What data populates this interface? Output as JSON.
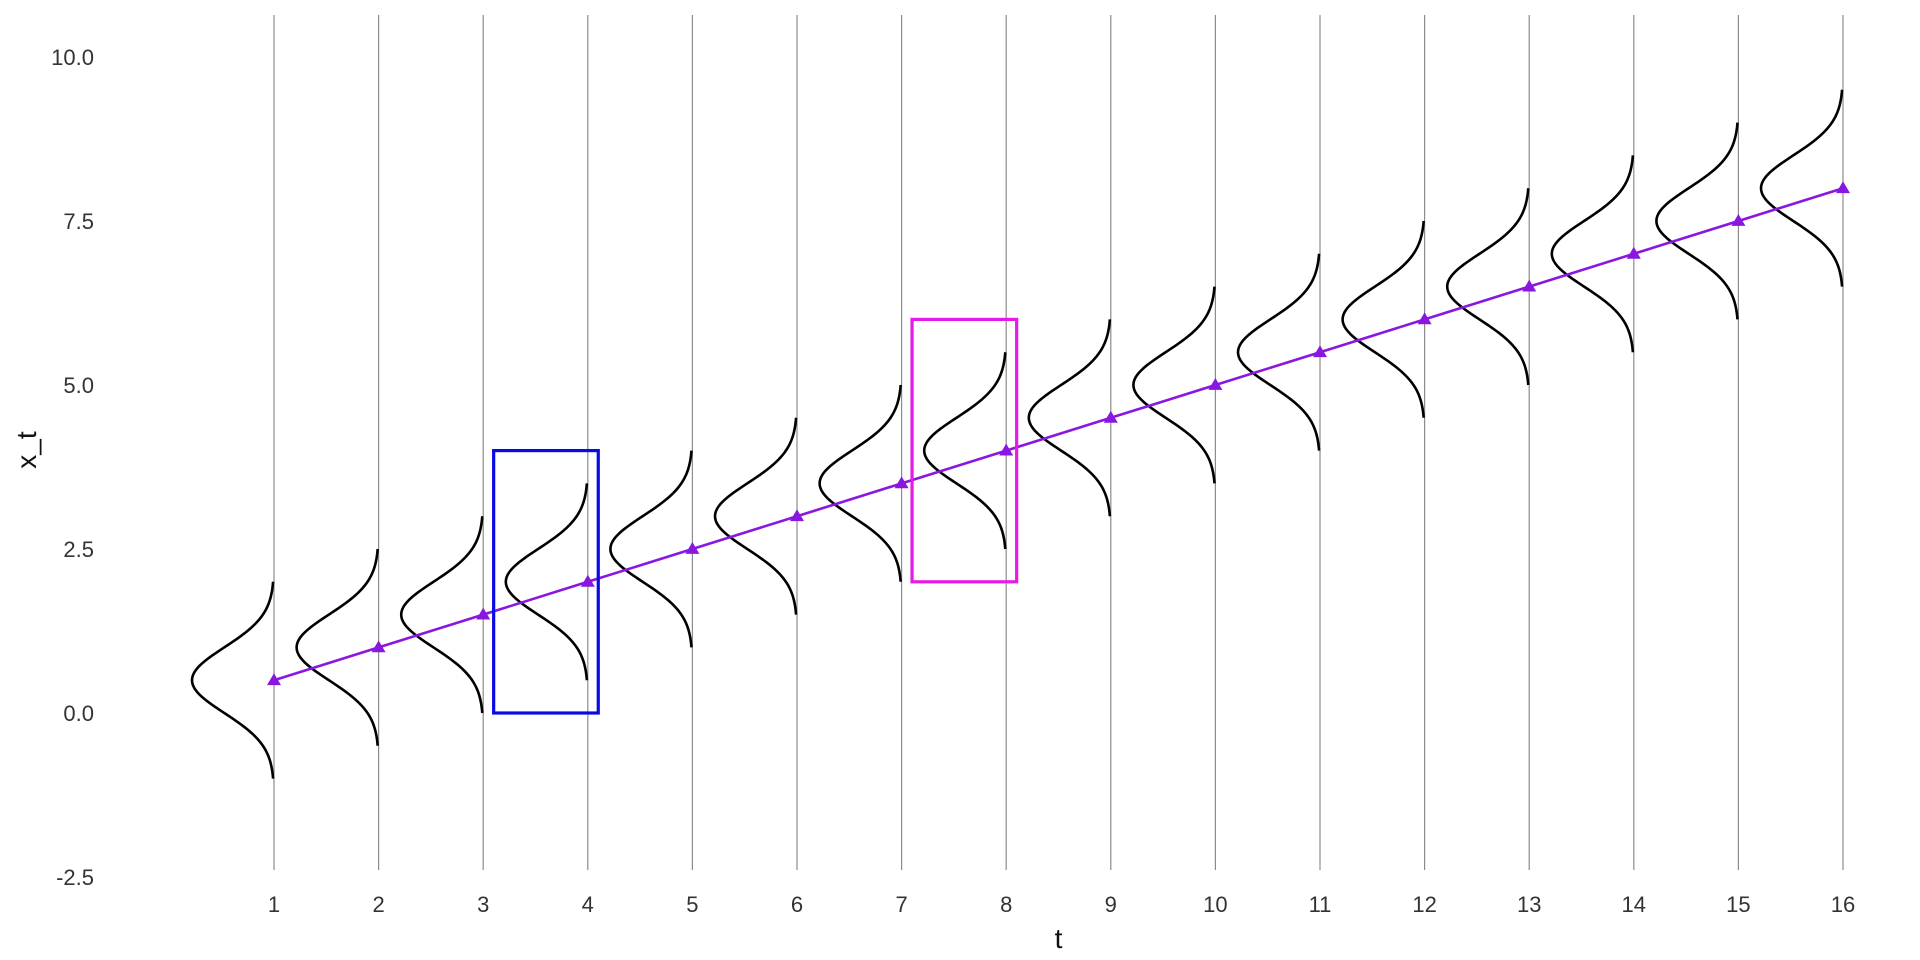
{
  "chart_data": {
    "type": "line",
    "xlabel": "t",
    "ylabel": "x_t",
    "xlim": [
      0,
      16.15
    ],
    "ylim": [
      -2.5,
      10.0
    ],
    "x_ticks": [
      1,
      2,
      3,
      4,
      5,
      6,
      7,
      8,
      9,
      10,
      11,
      12,
      13,
      14,
      15,
      16
    ],
    "y_ticks": [
      -2.5,
      0.0,
      2.5,
      5.0,
      7.5,
      10.0
    ],
    "y_tick_labels": [
      "-2.5",
      "0.0",
      "2.5",
      "5.0",
      "7.5",
      "10.0"
    ],
    "grid": "vertical lines at each t",
    "series": [
      {
        "marker": "triangle",
        "color": "#8a17e0",
        "x": [
          1,
          2,
          3,
          4,
          5,
          6,
          7,
          8,
          9,
          10,
          11,
          12,
          13,
          14,
          15,
          16
        ],
        "y": [
          0.5,
          1.0,
          1.5,
          2.0,
          2.5,
          3.0,
          3.5,
          4.0,
          4.5,
          5.0,
          5.5,
          6.0,
          6.5,
          7.0,
          7.5,
          8.0
        ]
      }
    ],
    "distributions": {
      "kind": "gaussian density drawn to the left of each vertical line",
      "color": "#000000",
      "means": [
        0.5,
        1.0,
        1.5,
        2.0,
        2.5,
        3.0,
        3.5,
        4.0,
        4.5,
        5.0,
        5.5,
        6.0,
        6.5,
        7.0,
        7.5,
        8.0
      ],
      "half_range": 1.5
    },
    "highlights": [
      {
        "x_range": [
          3.1,
          4.1
        ],
        "y_range": [
          0.0,
          4.0
        ],
        "color": "#0a0ae6"
      },
      {
        "x_range": [
          7.1,
          8.1
        ],
        "y_range": [
          2.0,
          6.0
        ],
        "color": "#e619e6"
      }
    ]
  }
}
